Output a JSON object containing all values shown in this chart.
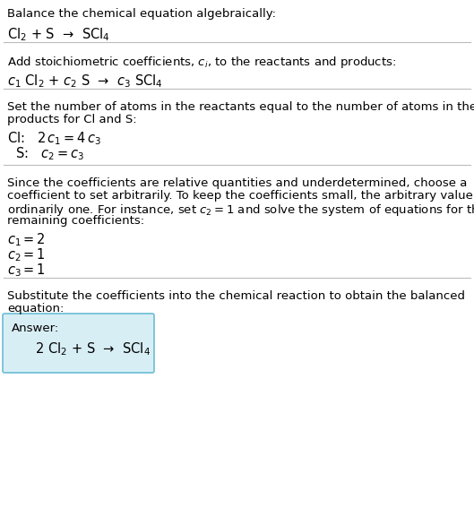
{
  "title": "Balance the chemical equation algebraically:",
  "equation_initial": "Cl$_2$ + S  →  SCl$_4$",
  "section1_title": "Add stoichiometric coefficients, $c_i$, to the reactants and products:",
  "section1_eq": "$c_1$ Cl$_2$ + $c_2$ S  →  $c_3$ SCl$_4$",
  "section2_title": "Set the number of atoms in the reactants equal to the number of atoms in the\nproducts for Cl and S:",
  "section2_cl": "Cl:   $2\\,c_1 = 4\\,c_3$",
  "section2_s": "  S:   $c_2 = c_3$",
  "section3_text": "Since the coefficients are relative quantities and underdetermined, choose a\ncoefficient to set arbitrarily. To keep the coefficients small, the arbitrary value is\nordinarily one. For instance, set $c_2 = 1$ and solve the system of equations for the\nremaining coefficients:",
  "section3_c1": "$c_1 = 2$",
  "section3_c2": "$c_2 = 1$",
  "section3_c3": "$c_3 = 1$",
  "section4_title": "Substitute the coefficients into the chemical reaction to obtain the balanced\nequation:",
  "answer_label": "Answer:",
  "answer_eq": "  2 Cl$_2$ + S  →  SCl$_4$",
  "bg_color": "#ffffff",
  "text_color": "#000000",
  "answer_box_facecolor": "#d8eef5",
  "answer_box_edgecolor": "#6bbdd4",
  "line_color": "#bbbbbb",
  "fs_body": 9.5,
  "fs_eq": 10.5
}
